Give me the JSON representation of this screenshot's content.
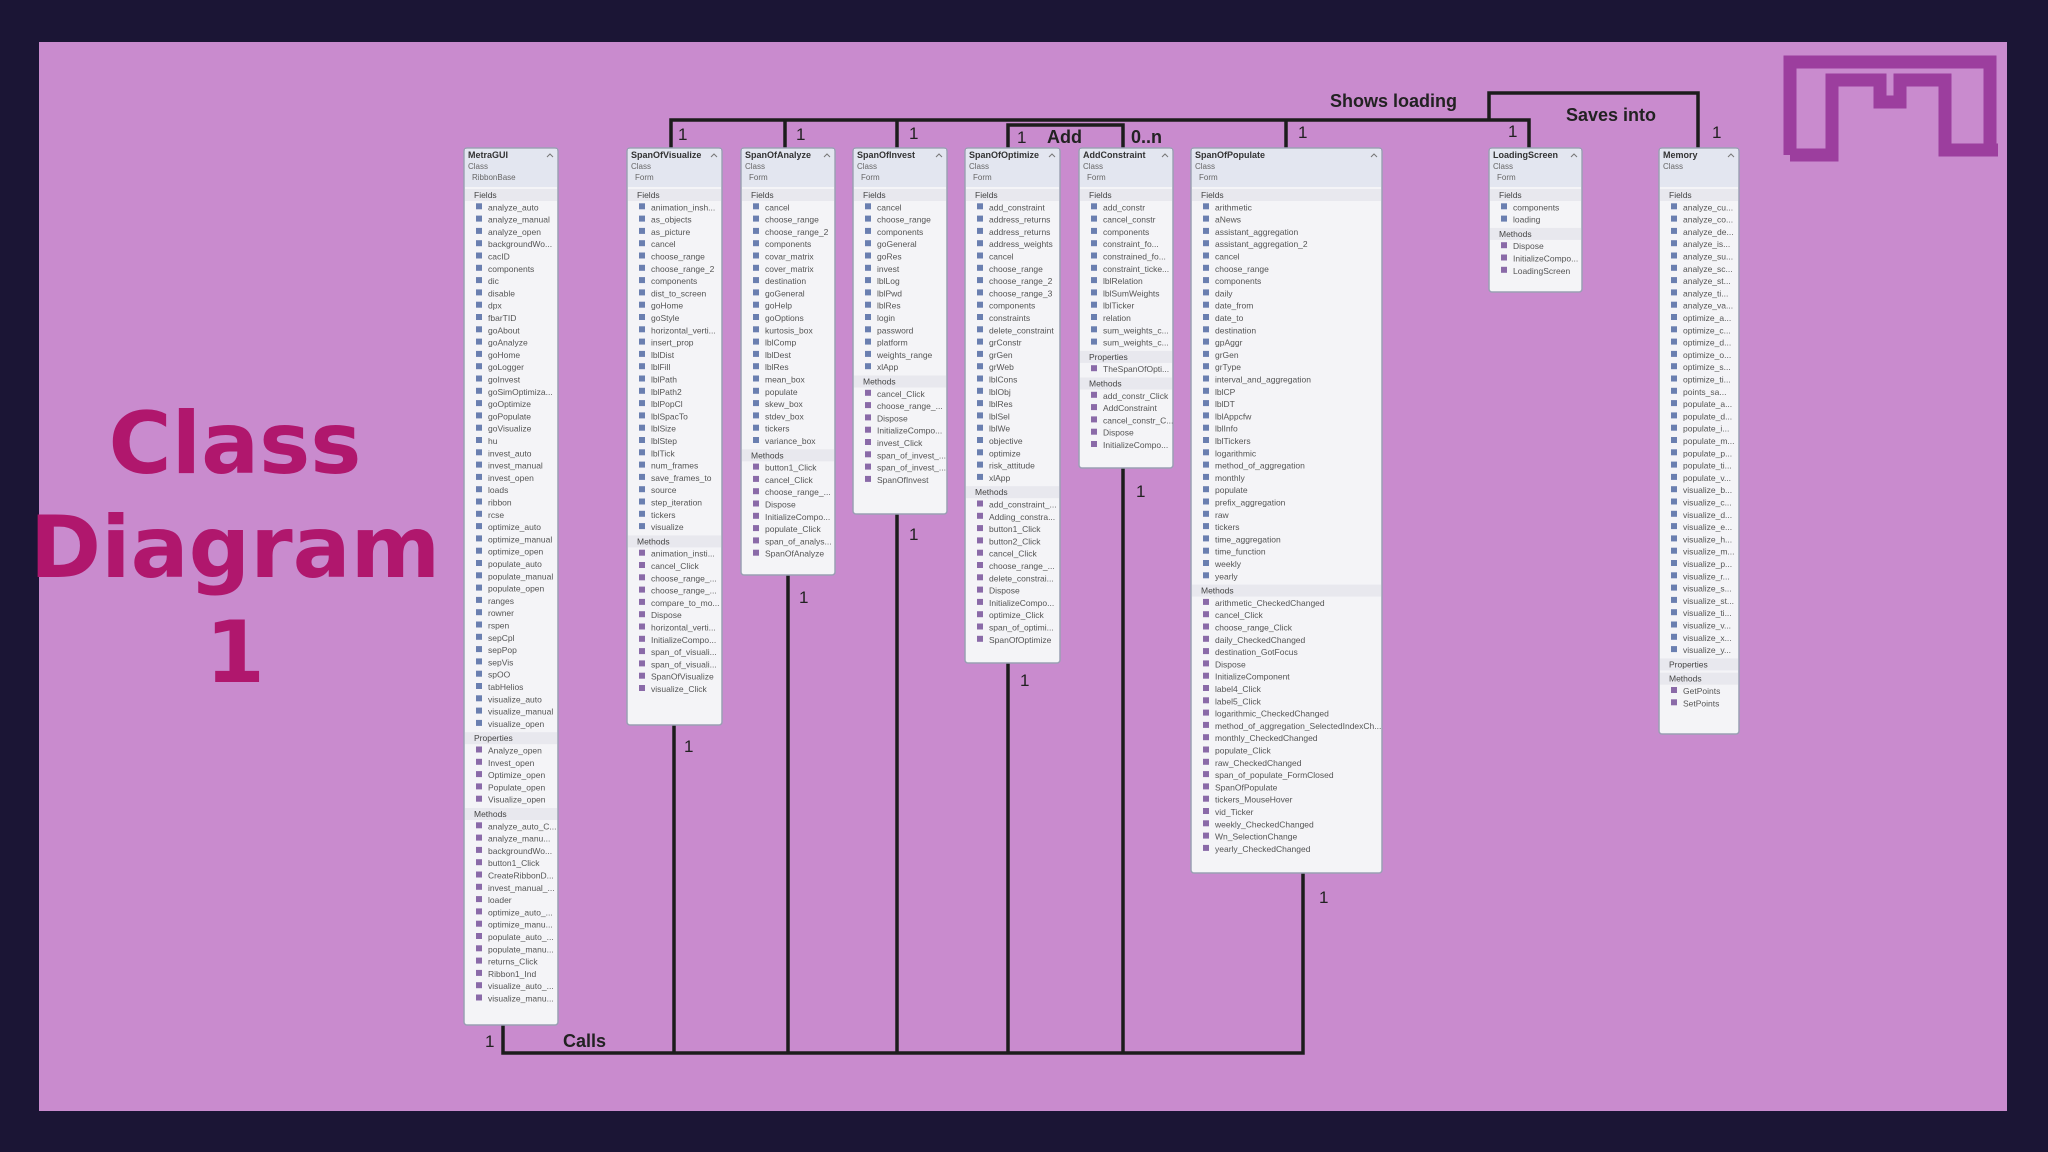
{
  "title_lines": [
    "Class",
    "Diagram",
    "1"
  ],
  "connector_labels": [
    "Shows loading",
    "Saves into",
    "Add",
    "0..n",
    "Calls"
  ],
  "multiplicities": [
    "1",
    "1",
    "1",
    "1",
    "1",
    "1",
    "1",
    "1",
    "1",
    "1",
    "1",
    "1",
    "1",
    "1"
  ],
  "classes": [
    {
      "name": "MetraGUI",
      "kind": "Class",
      "base": "RibbonBase",
      "sections": [
        {
          "title": "Fields",
          "items": [
            "analyze_auto",
            "analyze_manual",
            "analyze_open",
            "backgroundWo...",
            "cacID",
            "components",
            "dic",
            "disable",
            "dpx",
            "fbarTID",
            "goAbout",
            "goAnalyze",
            "goHome",
            "goLogger",
            "goInvest",
            "goSimOptimiza...",
            "goOptimize",
            "goPopulate",
            "goVisualize",
            "hu",
            "invest_auto",
            "invest_manual",
            "invest_open",
            "loads",
            "ribbon",
            "rcse",
            "optimize_auto",
            "optimize_manual",
            "optimize_open",
            "populate_auto",
            "populate_manual",
            "populate_open",
            "ranges",
            "rowner",
            "rspen",
            "sepCpl",
            "sepPop",
            "sepVis",
            "spOO",
            "tabHelios",
            "visualize_auto",
            "visualize_manual",
            "visualize_open"
          ]
        },
        {
          "title": "Properties",
          "items": [
            "Analyze_open",
            "Invest_open",
            "Optimize_open",
            "Populate_open",
            "Visualize_open"
          ]
        },
        {
          "title": "Methods",
          "items": [
            "analyze_auto_C...",
            "analyze_manu...",
            "backgroundWo...",
            "button1_Click",
            "CreateRibbonD...",
            "invest_manual_...",
            "loader",
            "optimize_auto_...",
            "optimize_manu...",
            "populate_auto_...",
            "populate_manu...",
            "returns_Click",
            "Ribbon1_Ind",
            "visualize_auto_...",
            "visualize_manu..."
          ]
        }
      ]
    },
    {
      "name": "SpanOfVisualize",
      "kind": "Class",
      "base": "Form",
      "sections": [
        {
          "title": "Fields",
          "items": [
            "animation_insh...",
            "as_objects",
            "as_picture",
            "cancel",
            "choose_range",
            "choose_range_2",
            "components",
            "dist_to_screen",
            "goHome",
            "goStyle",
            "horizontal_verti...",
            "insert_prop",
            "lblDist",
            "lblFill",
            "lblPath",
            "lblPath2",
            "lblPopCl",
            "lblSpacTo",
            "lblSize",
            "lblStep",
            "lblTick",
            "num_frames",
            "save_frames_to",
            "source",
            "step_iteration",
            "tickers",
            "visualize"
          ]
        },
        {
          "title": "Methods",
          "items": [
            "animation_insti...",
            "cancel_Click",
            "choose_range_...",
            "choose_range_...",
            "compare_to_mo...",
            "Dispose",
            "horizontal_verti...",
            "InitializeCompo...",
            "span_of_visuali...",
            "span_of_visuali...",
            "SpanOfVisualize",
            "visualize_Click"
          ]
        }
      ]
    },
    {
      "name": "SpanOfAnalyze",
      "kind": "Class",
      "base": "Form",
      "sections": [
        {
          "title": "Fields",
          "items": [
            "cancel",
            "choose_range",
            "choose_range_2",
            "components",
            "covar_matrix",
            "cover_matrix",
            "destination",
            "goGeneral",
            "goHelp",
            "goOptions",
            "kurtosis_box",
            "lblComp",
            "lblDest",
            "lblRes",
            "mean_box",
            "populate",
            "skew_box",
            "stdev_box",
            "tickers",
            "variance_box"
          ]
        },
        {
          "title": "Methods",
          "items": [
            "button1_Click",
            "cancel_Click",
            "choose_range_...",
            "Dispose",
            "InitializeCompo...",
            "populate_Click",
            "span_of_analys...",
            "SpanOfAnalyze"
          ]
        }
      ]
    },
    {
      "name": "SpanOfInvest",
      "kind": "Class",
      "base": "Form",
      "sections": [
        {
          "title": "Fields",
          "items": [
            "cancel",
            "choose_range",
            "components",
            "goGeneral",
            "goRes",
            "invest",
            "lblLog",
            "lblPwd",
            "lblRes",
            "login",
            "password",
            "platform",
            "weights_range",
            "xlApp"
          ]
        },
        {
          "title": "Methods",
          "items": [
            "cancel_Click",
            "choose_range_...",
            "Dispose",
            "InitializeCompo...",
            "invest_Click",
            "span_of_invest_...",
            "span_of_invest_...",
            "SpanOfInvest"
          ]
        }
      ]
    },
    {
      "name": "SpanOfOptimize",
      "kind": "Class",
      "base": "Form",
      "sections": [
        {
          "title": "Fields",
          "items": [
            "add_constraint",
            "address_returns",
            "address_returns",
            "address_weights",
            "cancel",
            "choose_range",
            "choose_range_2",
            "choose_range_3",
            "components",
            "constraints",
            "delete_constraint",
            "grConstr",
            "grGen",
            "grWeb",
            "lblCons",
            "lblObj",
            "lblRes",
            "lblSel",
            "lblWe",
            "objective",
            "optimize",
            "risk_attitude",
            "xlApp"
          ]
        },
        {
          "title": "Methods",
          "items": [
            "add_constraint_...",
            "Adding_constra...",
            "button1_Click",
            "button2_Click",
            "cancel_Click",
            "choose_range_...",
            "delete_constrai...",
            "Dispose",
            "InitializeCompo...",
            "optimize_Click",
            "span_of_optimi...",
            "SpanOfOptimize"
          ]
        }
      ]
    },
    {
      "name": "AddConstraint",
      "kind": "Class",
      "base": "Form",
      "sections": [
        {
          "title": "Fields",
          "items": [
            "add_constr",
            "cancel_constr",
            "components",
            "constraint_fo...",
            "constrained_fo...",
            "constraint_ticke...",
            "lblRelation",
            "lblSumWeights",
            "lblTicker",
            "relation",
            "sum_weights_c...",
            "sum_weights_c..."
          ]
        },
        {
          "title": "Properties",
          "items": [
            "TheSpanOfOpti..."
          ]
        },
        {
          "title": "Methods",
          "items": [
            "add_constr_Click",
            "AddConstraint",
            "cancel_constr_C...",
            "Dispose",
            "InitializeCompo..."
          ]
        }
      ]
    },
    {
      "name": "SpanOfPopulate",
      "kind": "Class",
      "base": "Form",
      "sections": [
        {
          "title": "Fields",
          "items": [
            "arithmetic",
            "aNews",
            "assistant_aggregation",
            "assistant_aggregation_2",
            "cancel",
            "choose_range",
            "components",
            "daily",
            "date_from",
            "date_to",
            "destination",
            "gpAggr",
            "grGen",
            "grType",
            "interval_and_aggregation",
            "lblCP",
            "lblDT",
            "lblAppcfw",
            "lblInfo",
            "lblTickers",
            "logarithmic",
            "method_of_aggregation",
            "monthly",
            "populate",
            "prefix_aggregation",
            "raw",
            "tickers",
            "time_aggregation",
            "time_function",
            "weekly",
            "yearly"
          ]
        },
        {
          "title": "Methods",
          "items": [
            "arithmetic_CheckedChanged",
            "cancel_Click",
            "choose_range_Click",
            "daily_CheckedChanged",
            "destination_GotFocus",
            "Dispose",
            "InitializeComponent",
            "label4_Click",
            "label5_Click",
            "logarithmic_CheckedChanged",
            "method_of_aggregation_SelectedIndexCh...",
            "monthly_CheckedChanged",
            "populate_Click",
            "raw_CheckedChanged",
            "span_of_populate_FormClosed",
            "SpanOfPopulate",
            "tickers_MouseHover",
            "vid_Ticker",
            "weekly_CheckedChanged",
            "Wn_SelectionChange",
            "yearly_CheckedChanged"
          ]
        }
      ]
    },
    {
      "name": "LoadingScreen",
      "kind": "Class",
      "base": "Form",
      "sections": [
        {
          "title": "Fields",
          "items": [
            "components",
            "loading"
          ]
        },
        {
          "title": "Methods",
          "items": [
            "Dispose",
            "InitializeCompo...",
            "LoadingScreen"
          ]
        }
      ]
    },
    {
      "name": "Memory",
      "kind": "Class",
      "base": "",
      "sections": [
        {
          "title": "Fields",
          "items": [
            "analyze_cu...",
            "analyze_co...",
            "analyze_de...",
            "analyze_is...",
            "analyze_su...",
            "analyze_sc...",
            "analyze_st...",
            "analyze_ti...",
            "analyze_va...",
            "optimize_a...",
            "optimize_c...",
            "optimize_d...",
            "optimize_o...",
            "optimize_s...",
            "optimize_ti...",
            "points_sa...",
            "populate_a...",
            "populate_d...",
            "populate_i...",
            "populate_m...",
            "populate_p...",
            "populate_ti...",
            "populate_v...",
            "visualize_b...",
            "visualize_c...",
            "visualize_d...",
            "visualize_e...",
            "visualize_h...",
            "visualize_m...",
            "visualize_p...",
            "visualize_r...",
            "visualize_s...",
            "visualize_st...",
            "visualize_ti...",
            "visualize_v...",
            "visualize_x...",
            "visualize_y..."
          ]
        },
        {
          "title": "Properties",
          "items": []
        },
        {
          "title": "Methods",
          "items": [
            "GetPoints",
            "SetPoints"
          ]
        }
      ]
    }
  ]
}
